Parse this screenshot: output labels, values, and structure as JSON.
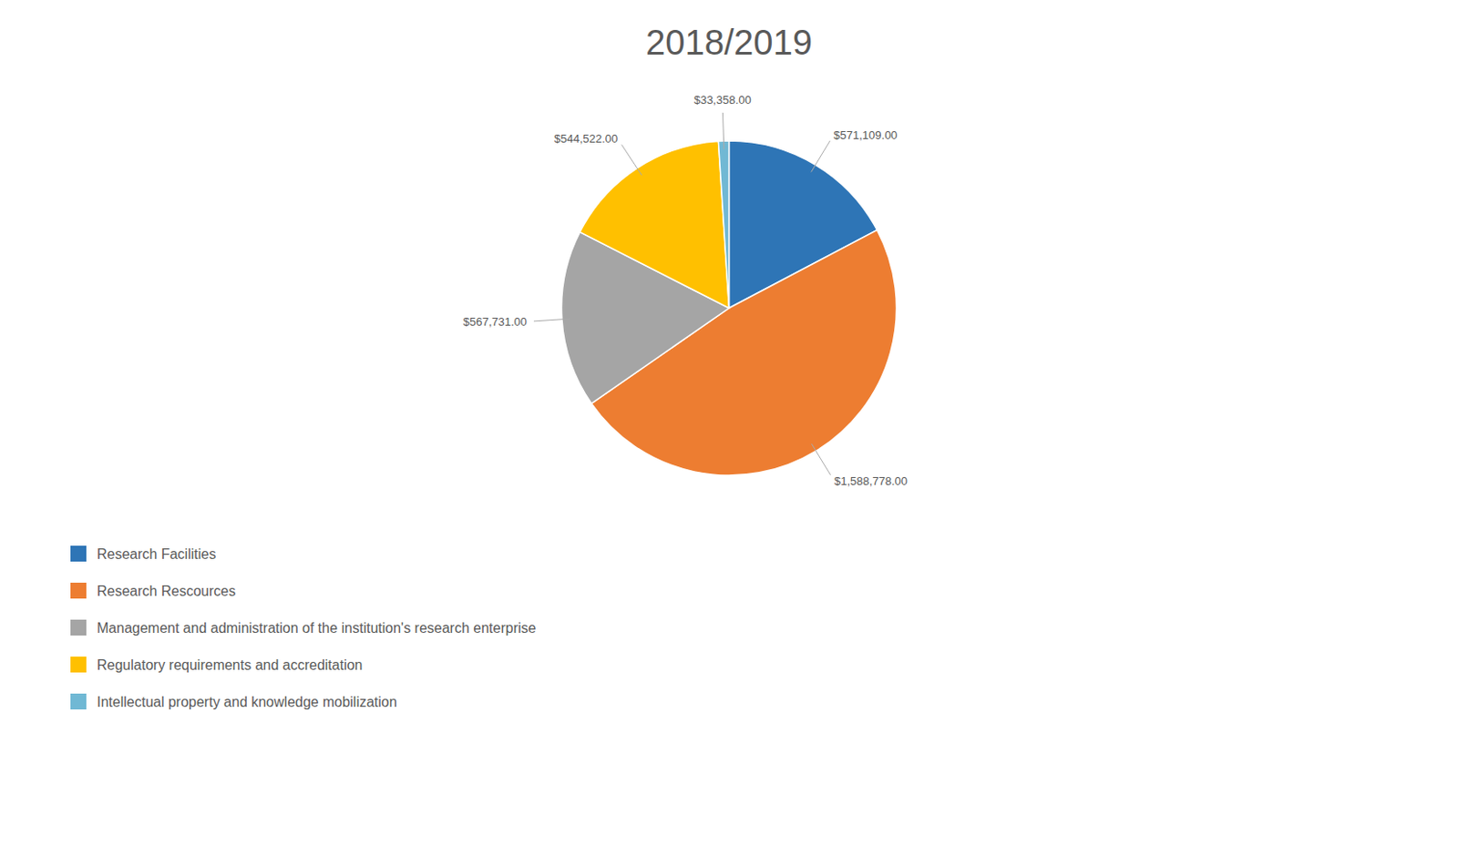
{
  "chart_data": {
    "type": "pie",
    "title": "2018/2019",
    "categories": [
      "Research Facilities",
      "Research Rescources",
      "Management and administration of the institution's research enterprise",
      "Regulatory requirements and accreditation",
      "Intellectual property and knowledge mobilization"
    ],
    "values": [
      571109,
      1588778,
      567731,
      544522,
      33358
    ],
    "value_labels": [
      "$571,109.00",
      "$1,588,778.00",
      "$567,731.00",
      "$544,522.00",
      "$33,358.00"
    ],
    "colors": [
      "#2E75B6",
      "#ED7D31",
      "#A5A5A5",
      "#FFC000",
      "#70B8D4"
    ],
    "data_labels": true,
    "legend": "lower-left"
  }
}
